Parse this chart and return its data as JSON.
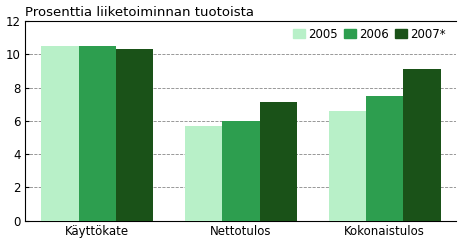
{
  "title": "Prosenttia liiketoiminnan tuotoista",
  "categories": [
    "Käyttökate",
    "Nettotulos",
    "Kokonaistulos"
  ],
  "series": {
    "2005": [
      10.5,
      5.7,
      6.6
    ],
    "2006": [
      10.5,
      6.0,
      7.5
    ],
    "2007*": [
      10.35,
      7.15,
      9.1
    ]
  },
  "colors": {
    "2005": "#b8f0c8",
    "2006": "#2d9e4f",
    "2007*": "#1a5218"
  },
  "legend_labels": [
    "2005",
    "2006",
    "2007*"
  ],
  "ylim": [
    0,
    12
  ],
  "yticks": [
    0,
    2,
    4,
    6,
    8,
    10,
    12
  ],
  "bar_width": 0.26,
  "background_color": "#ffffff",
  "title_fontsize": 9.5,
  "tick_fontsize": 8.5,
  "legend_fontsize": 8.5
}
